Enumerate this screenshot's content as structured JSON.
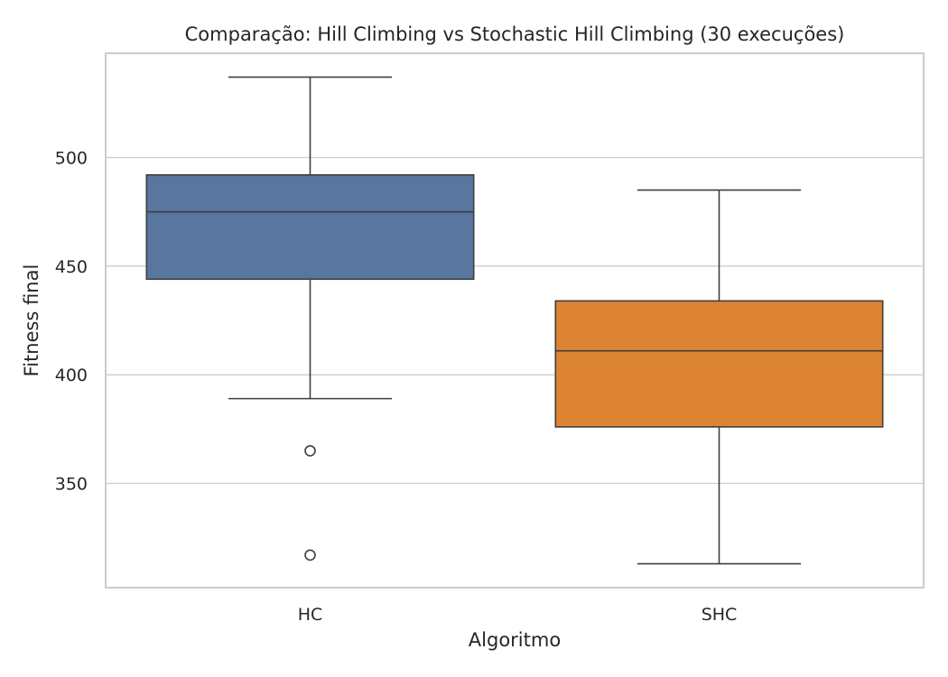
{
  "chart_data": {
    "type": "box",
    "title": "Comparação: Hill Climbing vs Stochastic Hill Climbing (30 execuções)",
    "xlabel": "Algoritmo",
    "ylabel": "Fitness final",
    "categories": [
      "HC",
      "SHC"
    ],
    "ylim": [
      302,
      548
    ],
    "yticks": [
      350,
      400,
      450,
      500
    ],
    "grid": true,
    "boxes": [
      {
        "name": "HC",
        "color": "#5876a0",
        "whisker_low": 389,
        "q1": 444,
        "median": 475,
        "q3": 492,
        "whisker_high": 537,
        "outliers": [
          365,
          317
        ]
      },
      {
        "name": "SHC",
        "color": "#dc8433",
        "whisker_low": 313,
        "q1": 376,
        "median": 411,
        "q3": 434,
        "whisker_high": 485,
        "outliers": []
      }
    ]
  }
}
